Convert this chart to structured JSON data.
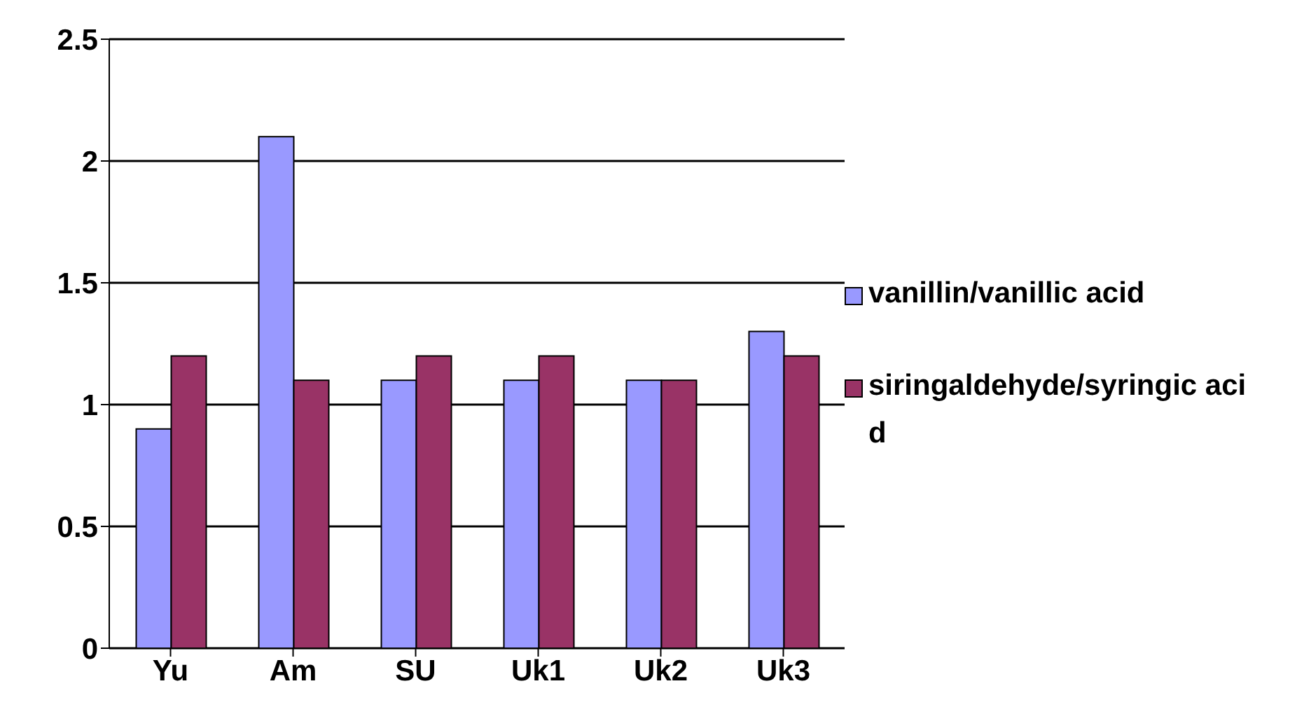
{
  "chart_data": {
    "type": "bar",
    "categories": [
      "Yu",
      "Am",
      "SU",
      "Uk1",
      "Uk2",
      "Uk3"
    ],
    "series": [
      {
        "name": "vanillin/vanillic acid",
        "color": "#9999ff",
        "values": [
          0.9,
          2.1,
          1.1,
          1.1,
          1.1,
          1.3
        ]
      },
      {
        "name": "siringaldehyde/syringic acid",
        "color": "#993366",
        "values": [
          1.2,
          1.1,
          1.2,
          1.2,
          1.1,
          1.2
        ]
      }
    ],
    "ylim": [
      0,
      2.5
    ],
    "yticks": [
      0,
      0.5,
      1,
      1.5,
      2,
      2.5
    ],
    "grid": "y",
    "legend": "right"
  }
}
